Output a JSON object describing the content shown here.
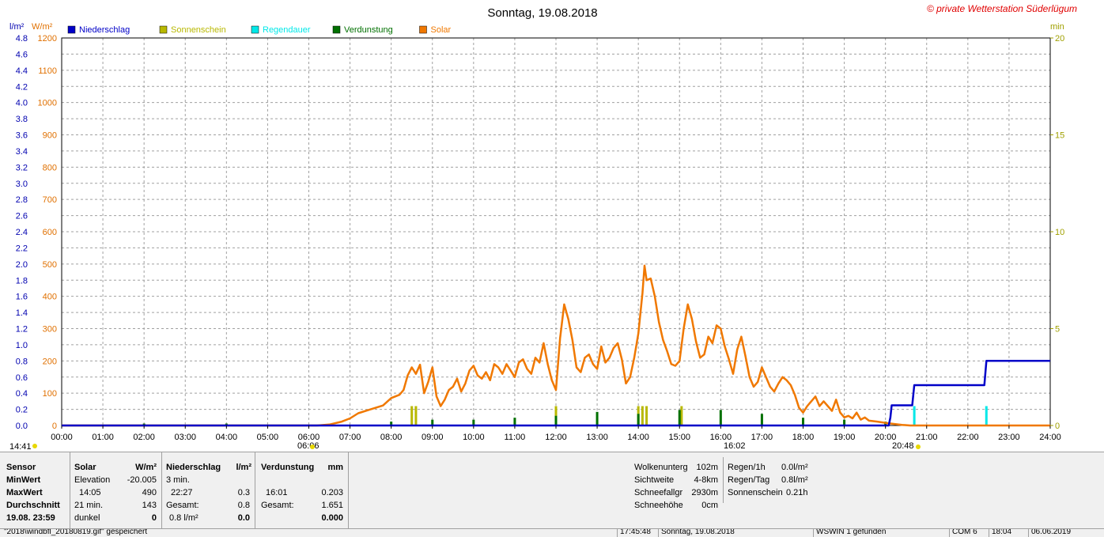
{
  "header": {
    "title": "Sonntag, 19.08.2018",
    "copyright": "© private Wetterstation Süderlügum",
    "unit_left1": "l/m²",
    "unit_left2": "W/m²",
    "unit_right": "min"
  },
  "legend": [
    {
      "label": "Niederschlag",
      "color": "#0000c8"
    },
    {
      "label": "Sonnenschein",
      "color": "#b8b800"
    },
    {
      "label": "Regendauer",
      "color": "#00e8e8"
    },
    {
      "label": "Verdunstung",
      "color": "#007000"
    },
    {
      "label": "Solar",
      "color": "#f07800"
    }
  ],
  "markers": {
    "sunrise_time": "06:06",
    "sunset_time": "20:48",
    "max_time": "16:02",
    "cursor_time": "14:41"
  },
  "chart_data": {
    "type": "line",
    "x_unit": "hour",
    "xlim": [
      0,
      24
    ],
    "xticks": [
      "00:00",
      "01:00",
      "02:00",
      "03:00",
      "04:00",
      "05:00",
      "06:00",
      "07:00",
      "08:00",
      "09:00",
      "10:00",
      "11:00",
      "12:00",
      "13:00",
      "14:00",
      "15:00",
      "16:00",
      "17:00",
      "18:00",
      "19:00",
      "20:00",
      "21:00",
      "22:00",
      "23:00",
      "24:00"
    ],
    "axes": {
      "solar": {
        "label": "W/m²",
        "ylim": [
          0,
          1200
        ],
        "ticks": [
          0,
          100,
          200,
          300,
          400,
          500,
          600,
          700,
          800,
          900,
          1000,
          1100,
          1200
        ]
      },
      "niederschlag": {
        "label": "l/m²",
        "ylim": [
          0,
          4.8
        ],
        "ticks": [
          "0.0",
          "0.2",
          "0.4",
          "0.6",
          "0.8",
          "1.0",
          "1.2",
          "1.4",
          "1.6",
          "1.8",
          "2.0",
          "2.2",
          "2.4",
          "2.6",
          "2.8",
          "3.0",
          "3.2",
          "3.4",
          "3.6",
          "3.8",
          "4.0",
          "4.2",
          "4.4",
          "4.6",
          "4.8"
        ]
      },
      "minutes": {
        "label": "min",
        "ylim": [
          0,
          20
        ],
        "ticks": [
          0,
          5,
          10,
          15,
          20
        ]
      }
    },
    "grid": true,
    "legend_position": "top-left",
    "series": [
      {
        "name": "Solar",
        "color": "#f07800",
        "axis": "solar",
        "points": [
          [
            0,
            0
          ],
          [
            6.2,
            0
          ],
          [
            6.5,
            3
          ],
          [
            6.8,
            12
          ],
          [
            7.0,
            22
          ],
          [
            7.2,
            38
          ],
          [
            7.5,
            50
          ],
          [
            7.8,
            62
          ],
          [
            8.0,
            85
          ],
          [
            8.2,
            95
          ],
          [
            8.3,
            110
          ],
          [
            8.4,
            155
          ],
          [
            8.5,
            180
          ],
          [
            8.6,
            160
          ],
          [
            8.7,
            188
          ],
          [
            8.8,
            100
          ],
          [
            8.9,
            135
          ],
          [
            9.0,
            180
          ],
          [
            9.1,
            90
          ],
          [
            9.2,
            60
          ],
          [
            9.3,
            80
          ],
          [
            9.4,
            110
          ],
          [
            9.5,
            120
          ],
          [
            9.6,
            145
          ],
          [
            9.7,
            105
          ],
          [
            9.8,
            130
          ],
          [
            9.9,
            170
          ],
          [
            10.0,
            185
          ],
          [
            10.1,
            155
          ],
          [
            10.2,
            145
          ],
          [
            10.3,
            165
          ],
          [
            10.4,
            140
          ],
          [
            10.5,
            190
          ],
          [
            10.6,
            180
          ],
          [
            10.7,
            160
          ],
          [
            10.8,
            190
          ],
          [
            10.9,
            170
          ],
          [
            11.0,
            150
          ],
          [
            11.1,
            195
          ],
          [
            11.2,
            205
          ],
          [
            11.3,
            175
          ],
          [
            11.4,
            160
          ],
          [
            11.5,
            210
          ],
          [
            11.6,
            195
          ],
          [
            11.7,
            255
          ],
          [
            11.8,
            190
          ],
          [
            11.9,
            140
          ],
          [
            12.0,
            110
          ],
          [
            12.1,
            270
          ],
          [
            12.2,
            375
          ],
          [
            12.3,
            330
          ],
          [
            12.4,
            265
          ],
          [
            12.5,
            180
          ],
          [
            12.6,
            165
          ],
          [
            12.7,
            210
          ],
          [
            12.8,
            220
          ],
          [
            12.9,
            190
          ],
          [
            13.0,
            175
          ],
          [
            13.1,
            245
          ],
          [
            13.2,
            195
          ],
          [
            13.3,
            210
          ],
          [
            13.4,
            240
          ],
          [
            13.5,
            255
          ],
          [
            13.6,
            205
          ],
          [
            13.7,
            130
          ],
          [
            13.8,
            150
          ],
          [
            13.9,
            210
          ],
          [
            14.0,
            285
          ],
          [
            14.1,
            410
          ],
          [
            14.15,
            495
          ],
          [
            14.2,
            450
          ],
          [
            14.3,
            455
          ],
          [
            14.4,
            400
          ],
          [
            14.5,
            320
          ],
          [
            14.6,
            265
          ],
          [
            14.7,
            230
          ],
          [
            14.8,
            190
          ],
          [
            14.9,
            185
          ],
          [
            15.0,
            200
          ],
          [
            15.1,
            300
          ],
          [
            15.2,
            375
          ],
          [
            15.3,
            330
          ],
          [
            15.4,
            260
          ],
          [
            15.5,
            210
          ],
          [
            15.6,
            220
          ],
          [
            15.7,
            275
          ],
          [
            15.8,
            255
          ],
          [
            15.9,
            310
          ],
          [
            16.0,
            300
          ],
          [
            16.1,
            245
          ],
          [
            16.2,
            205
          ],
          [
            16.3,
            160
          ],
          [
            16.4,
            235
          ],
          [
            16.5,
            275
          ],
          [
            16.6,
            215
          ],
          [
            16.7,
            150
          ],
          [
            16.8,
            120
          ],
          [
            16.9,
            135
          ],
          [
            17.0,
            180
          ],
          [
            17.1,
            150
          ],
          [
            17.2,
            120
          ],
          [
            17.3,
            105
          ],
          [
            17.4,
            130
          ],
          [
            17.5,
            150
          ],
          [
            17.6,
            140
          ],
          [
            17.7,
            125
          ],
          [
            17.8,
            95
          ],
          [
            17.9,
            55
          ],
          [
            18.0,
            40
          ],
          [
            18.1,
            60
          ],
          [
            18.2,
            75
          ],
          [
            18.3,
            90
          ],
          [
            18.4,
            60
          ],
          [
            18.5,
            75
          ],
          [
            18.6,
            60
          ],
          [
            18.7,
            45
          ],
          [
            18.8,
            80
          ],
          [
            18.9,
            40
          ],
          [
            19.0,
            25
          ],
          [
            19.1,
            30
          ],
          [
            19.2,
            22
          ],
          [
            19.3,
            40
          ],
          [
            19.4,
            18
          ],
          [
            19.5,
            25
          ],
          [
            19.6,
            15
          ],
          [
            19.8,
            12
          ],
          [
            20.0,
            8
          ],
          [
            20.2,
            5
          ],
          [
            20.4,
            2
          ],
          [
            20.6,
            0
          ],
          [
            24,
            0
          ]
        ]
      },
      {
        "name": "Niederschlag",
        "color": "#0000c8",
        "axis": "niederschlag",
        "points": [
          [
            0,
            0
          ],
          [
            20.08,
            0
          ],
          [
            20.12,
            0.1
          ],
          [
            20.15,
            0.25
          ],
          [
            20.65,
            0.25
          ],
          [
            20.7,
            0.5
          ],
          [
            21.3,
            0.5
          ],
          [
            21.3,
            0.5
          ],
          [
            22.4,
            0.5
          ],
          [
            22.45,
            0.8
          ],
          [
            24,
            0.8
          ]
        ]
      },
      {
        "name": "Sonnenschein",
        "color": "#b8b800",
        "axis": "minutes",
        "bars": [
          [
            8.5,
            1.0
          ],
          [
            8.6,
            1.0
          ],
          [
            12.0,
            1.0
          ],
          [
            14.0,
            1.0
          ],
          [
            14.1,
            1.0
          ],
          [
            14.2,
            1.0
          ],
          [
            15.05,
            1.0
          ]
        ]
      },
      {
        "name": "Regendauer",
        "color": "#00e8e8",
        "axis": "minutes",
        "bars": [
          [
            20.7,
            1.0
          ],
          [
            22.45,
            1.0
          ]
        ]
      },
      {
        "name": "Verdunstung",
        "color": "#007000",
        "axis": "minutes",
        "bars": [
          [
            2.0,
            0.1
          ],
          [
            4.0,
            0.1
          ],
          [
            8.0,
            0.2
          ],
          [
            9.0,
            0.3
          ],
          [
            10.0,
            0.3
          ],
          [
            11.0,
            0.4
          ],
          [
            12.0,
            0.5
          ],
          [
            13.0,
            0.7
          ],
          [
            14.0,
            0.6
          ],
          [
            15.0,
            0.8
          ],
          [
            16.0,
            0.8
          ],
          [
            17.0,
            0.6
          ],
          [
            18.0,
            0.4
          ],
          [
            19.0,
            0.3
          ],
          [
            20.0,
            0.2
          ]
        ]
      }
    ]
  },
  "panel": {
    "sensor_header": "Sensor",
    "row_labels": [
      "MinWert",
      "MaxWert",
      "Durchschnitt",
      "19.08. 23:59"
    ],
    "solar": {
      "header": "Solar",
      "unit": "W/m²",
      "rows": [
        [
          "Elevation",
          "-20.005"
        ],
        [
          "14:05",
          "490"
        ],
        [
          "21 min.",
          "143"
        ],
        [
          "dunkel",
          "0"
        ]
      ]
    },
    "niederschlag": {
      "header": "Niederschlag",
      "unit": "l/m²",
      "rows": [
        [
          "3 min.",
          ""
        ],
        [
          "22:27",
          "0.3"
        ],
        [
          "Gesamt:",
          "0.8"
        ],
        [
          "0.8 l/m²",
          "0.0"
        ]
      ]
    },
    "verdunstung": {
      "header": "Verdunstung",
      "unit": "mm",
      "rows": [
        [
          "",
          ""
        ],
        [
          "16:01",
          "0.203"
        ],
        [
          "Gesamt:",
          "1.651"
        ],
        [
          "",
          "0.000"
        ]
      ]
    },
    "weather": [
      [
        "Wolkenunterg",
        "102m"
      ],
      [
        "Sichtweite",
        "4-8km"
      ],
      [
        "Schneefallgr",
        "2930m"
      ],
      [
        "Schneehöhe",
        "0cm"
      ]
    ],
    "rain": [
      [
        "Regen/1h",
        "0.0l/m²"
      ],
      [
        "Regen/Tag",
        "0.8l/m²"
      ],
      [
        "Sonnenschein",
        "0.21h"
      ]
    ]
  },
  "statusbar": {
    "message": "\"2018\\windbfl_20180819.gif\" gespeichert",
    "time": "17:45:48",
    "date": "Sonntag, 19.08.2018",
    "device": "WSWIN 1 gefunden",
    "port": "COM 6",
    "clock": "18:04",
    "date2": "06.06.2019"
  }
}
